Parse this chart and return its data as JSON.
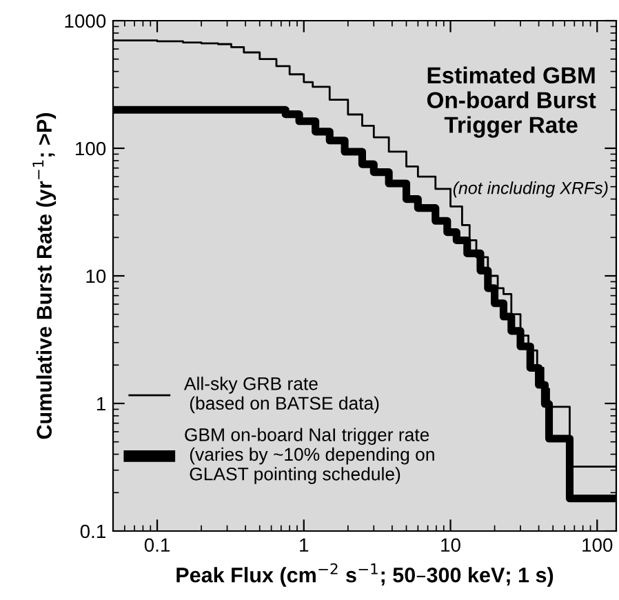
{
  "chart_data": {
    "type": "step",
    "title": "Estimated GBM\nOn-board Burst\nTrigger Rate",
    "subtitle": "(not including XRFs)",
    "xlabel": "Peak Flux (cm$^{−2}$ s$^{−1}$; 50–300 keV; 1 s)",
    "ylabel": "Cumulative Burst Rate (yr$^{−1}$; >P)",
    "log": "xy",
    "xlim": [
      0.05,
      135
    ],
    "ylim": [
      0.1,
      1000
    ],
    "xticks": [
      0.1,
      1,
      10,
      100
    ],
    "yticks": [
      0.1,
      1,
      10,
      100,
      1000
    ],
    "grid": false,
    "legend": "bottom left",
    "marker": "none",
    "line_style": "solid",
    "series": [
      {
        "name": "All-sky GRB rate\n (based on BATSE data)",
        "color": "#000000",
        "x": [
          0.05,
          0.1,
          0.15,
          0.2,
          0.26,
          0.32,
          0.39,
          0.5,
          0.65,
          0.8,
          1.0,
          1.15,
          1.5,
          2.0,
          2.5,
          3.0,
          3.8,
          5,
          6,
          7.9,
          10,
          12,
          13.5,
          15,
          18,
          21,
          23,
          26,
          30,
          34,
          39,
          43,
          47,
          65,
          135
        ],
        "values": [
          700,
          690,
          675,
          665,
          655,
          620,
          564,
          500,
          440,
          380,
          330,
          303,
          240,
          184,
          150,
          122,
          94,
          72,
          60,
          48,
          35,
          25,
          19,
          14,
          10,
          8,
          7.2,
          5,
          3.4,
          2.6,
          1.9,
          1.3,
          0.94,
          0.32,
          0.32
        ]
      },
      {
        "name": "GBM on-board NaI trigger rate\n (varies by ~10% depending on\n GLAST pointing schedule)",
        "color": "#000000",
        "x": [
          0.05,
          0.65,
          0.75,
          0.93,
          1.2,
          1.5,
          1.9,
          2.5,
          3.0,
          3.8,
          5,
          6,
          7.9,
          9.5,
          11,
          13,
          16,
          18,
          20,
          23,
          26,
          30,
          35,
          40,
          44,
          47,
          65,
          135
        ],
        "values": [
          200,
          200,
          185,
          163,
          135,
          115,
          94,
          75,
          65,
          53,
          40,
          34,
          27,
          22,
          19,
          15,
          11,
          8,
          6.1,
          4.8,
          3.7,
          2.8,
          1.9,
          1.4,
          0.99,
          0.53,
          0.18,
          0.18
        ]
      }
    ]
  }
}
